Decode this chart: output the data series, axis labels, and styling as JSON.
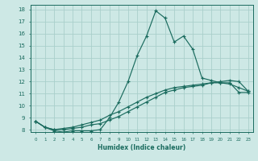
{
  "title": "",
  "xlabel": "Humidex (Indice chaleur)",
  "background_color": "#cde8e5",
  "grid_color": "#aacfcb",
  "line_color": "#1a6b5e",
  "xlim": [
    -0.5,
    23.5
  ],
  "ylim": [
    7.8,
    18.4
  ],
  "xticks": [
    0,
    1,
    2,
    3,
    4,
    5,
    6,
    7,
    8,
    9,
    10,
    11,
    12,
    13,
    14,
    15,
    16,
    17,
    18,
    19,
    20,
    21,
    22,
    23
  ],
  "yticks": [
    8,
    9,
    10,
    11,
    12,
    13,
    14,
    15,
    16,
    17,
    18
  ],
  "line1_x": [
    0,
    1,
    2,
    3,
    4,
    5,
    6,
    7,
    8,
    9,
    10,
    11,
    12,
    13,
    14,
    15,
    16,
    17,
    18,
    19,
    20,
    21,
    22,
    23
  ],
  "line1_y": [
    8.7,
    8.2,
    7.9,
    7.8,
    7.9,
    7.9,
    7.9,
    8.0,
    9.0,
    10.3,
    12.0,
    14.2,
    15.8,
    17.9,
    17.3,
    15.3,
    15.8,
    14.7,
    12.3,
    12.1,
    11.9,
    11.8,
    11.5,
    11.2
  ],
  "line2_x": [
    0,
    1,
    2,
    3,
    4,
    5,
    6,
    7,
    8,
    9,
    10,
    11,
    12,
    13,
    14,
    15,
    16,
    17,
    18,
    19,
    20,
    21,
    22,
    23
  ],
  "line2_y": [
    8.7,
    8.2,
    8.0,
    8.0,
    8.1,
    8.2,
    8.4,
    8.5,
    8.8,
    9.1,
    9.5,
    9.9,
    10.3,
    10.7,
    11.1,
    11.3,
    11.5,
    11.6,
    11.7,
    11.9,
    12.0,
    12.1,
    12.0,
    11.2
  ],
  "line3_x": [
    0,
    1,
    2,
    3,
    4,
    5,
    6,
    7,
    8,
    9,
    10,
    11,
    12,
    13,
    14,
    15,
    16,
    17,
    18,
    19,
    20,
    21,
    22,
    23
  ],
  "line3_y": [
    8.7,
    8.2,
    8.0,
    8.1,
    8.2,
    8.4,
    8.6,
    8.8,
    9.2,
    9.5,
    9.9,
    10.3,
    10.7,
    11.0,
    11.3,
    11.5,
    11.6,
    11.7,
    11.8,
    11.9,
    11.9,
    11.9,
    11.1,
    11.1
  ]
}
